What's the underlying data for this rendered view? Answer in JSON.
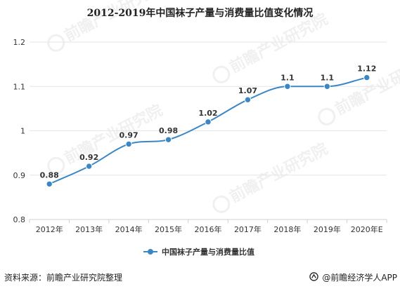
{
  "title": "2012-2019年中国袜子产量与消费量比值变化情况",
  "source_label": "资料来源：前瞻产业研究院整理",
  "brand_label": "@前瞻经济学人APP",
  "watermark_text": "前瞻产业研究院",
  "colors": {
    "series": "#3a87c8",
    "axis": "#d0d0d0",
    "grid": "#e6e6e6",
    "text": "#333333"
  },
  "chart_data": {
    "type": "line",
    "title": "2012-2019年中国袜子产量与消费量比值变化情况",
    "categories": [
      "2012年",
      "2013年",
      "2014年",
      "2015年",
      "2016年",
      "2017年",
      "2018年",
      "2019年",
      "2020年E"
    ],
    "series": [
      {
        "name": "中国袜子产量与消费量比值",
        "values": [
          0.88,
          0.92,
          0.97,
          0.98,
          1.02,
          1.07,
          1.1,
          1.1,
          1.12
        ]
      }
    ],
    "data_labels": [
      "0.88",
      "0.92",
      "0.97",
      "0.98",
      "1.02",
      "1.07",
      "1.1",
      "1.1",
      "1.12"
    ],
    "yticks": [
      "0.8",
      "0.9",
      "1",
      "1.1",
      "1.2"
    ],
    "ytick_values": [
      0.8,
      0.9,
      1.0,
      1.1,
      1.2
    ],
    "ylim": [
      0.8,
      1.2
    ],
    "xlabel": "",
    "ylabel": "",
    "grid": "horizontal",
    "legend": "bottom-center",
    "smooth": true
  }
}
